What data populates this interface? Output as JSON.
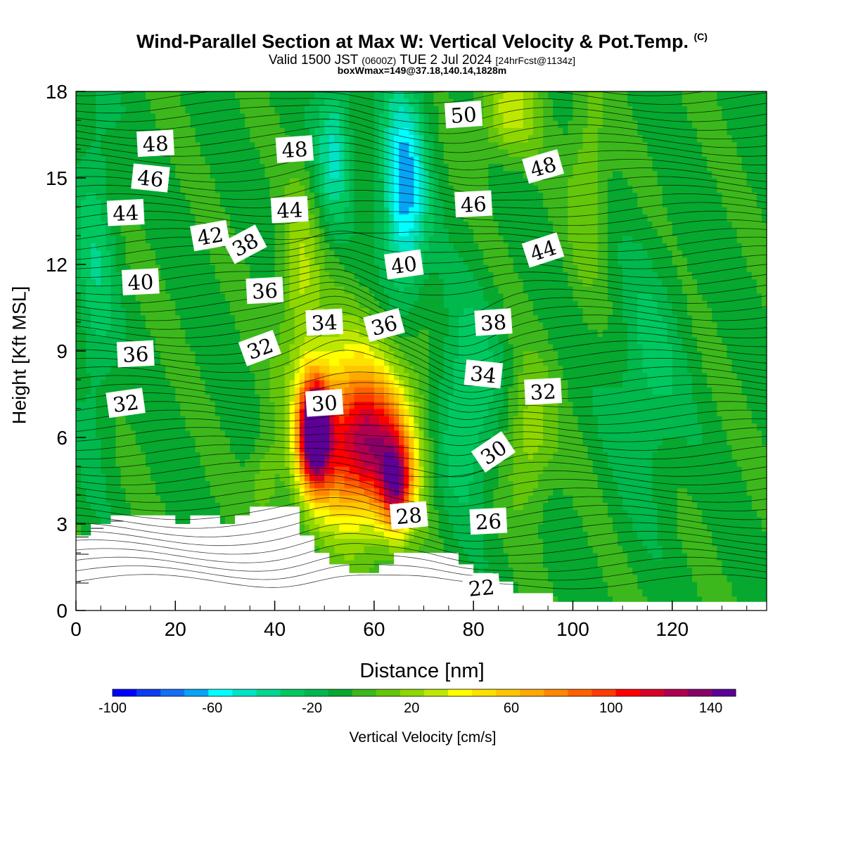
{
  "title": {
    "main": "Wind-Parallel Section at Max W: Vertical Velocity & Pot.Temp.",
    "tag": "(C)"
  },
  "subtitle": {
    "part1": "Valid 1500 JST",
    "part2": "(0600Z)",
    "part3": "TUE 2 Jul 2024",
    "part4": "[24hrFcst@1134z]"
  },
  "subtitle2": "boxWmax=149@37.18,140.14,1828m",
  "chart_data": {
    "type": "heatmap",
    "xlabel": "Distance [nm]",
    "ylabel": "Height [Kft MSL]",
    "xlim": [
      0,
      139
    ],
    "ylim": [
      0,
      18
    ],
    "x_ticks": [
      "0",
      "20",
      "40",
      "60",
      "80",
      "100",
      "120"
    ],
    "y_ticks": [
      "0",
      "3",
      "6",
      "9",
      "12",
      "15",
      "18"
    ],
    "colorbar": {
      "label": "Vertical Velocity [cm/s]",
      "range": [
        -100,
        150
      ],
      "tick_labels": [
        "-100",
        "-60",
        "-20",
        "20",
        "60",
        "100",
        "140"
      ],
      "colors": [
        "#0000ff",
        "#0a3df0",
        "#1370f5",
        "#07a4f5",
        "#00ffff",
        "#00e3c6",
        "#00d790",
        "#00c860",
        "#00b84c",
        "#06a82f",
        "#3cb81c",
        "#64c60a",
        "#8fd700",
        "#bfe800",
        "#ffff00",
        "#ffe100",
        "#ffc600",
        "#ffa900",
        "#ff8700",
        "#ff6100",
        "#ff3c00",
        "#ff0000",
        "#d80028",
        "#b0004f",
        "#860066",
        "#5c0096"
      ]
    },
    "updrafts": [
      {
        "x": 48,
        "z": 6.3,
        "w": 149
      },
      {
        "x": 64,
        "z": 5.0,
        "w": 90
      }
    ],
    "downdrafts": [
      {
        "x": 66,
        "z": 14.0,
        "w": -60
      }
    ],
    "theta_contour_labels": [
      "48",
      "46",
      "44",
      "42",
      "40",
      "36",
      "32",
      "48",
      "44",
      "38",
      "36",
      "34",
      "32",
      "30",
      "40",
      "36",
      "28",
      "50",
      "46",
      "38",
      "34",
      "30",
      "26",
      "22",
      "48",
      "44",
      "32"
    ]
  }
}
